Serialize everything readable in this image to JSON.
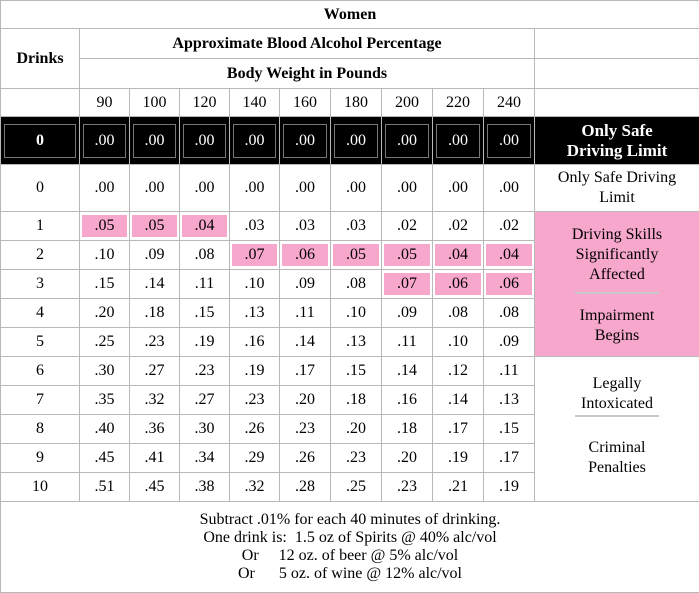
{
  "title": "Women",
  "subtitle": "Approximate Blood Alcohol Percentage",
  "drinks_header": "Drinks",
  "weight_header": "Body Weight in Pounds",
  "weights": [
    "90",
    "100",
    "120",
    "140",
    "160",
    "180",
    "200",
    "220",
    "240"
  ],
  "rows": [
    {
      "drinks": "0",
      "values": [
        ".00",
        ".00",
        ".00",
        ".00",
        ".00",
        ".00",
        ".00",
        ".00",
        ".00"
      ]
    },
    {
      "drinks": "0",
      "values": [
        ".00",
        ".00",
        ".00",
        ".00",
        ".00",
        ".00",
        ".00",
        ".00",
        ".00"
      ]
    },
    {
      "drinks": "1",
      "values": [
        ".05",
        ".05",
        ".04",
        ".03",
        ".03",
        ".03",
        ".02",
        ".02",
        ".02"
      ]
    },
    {
      "drinks": "2",
      "values": [
        ".10",
        ".09",
        ".08",
        ".07",
        ".06",
        ".05",
        ".05",
        ".04",
        ".04"
      ]
    },
    {
      "drinks": "3",
      "values": [
        ".15",
        ".14",
        ".11",
        ".10",
        ".09",
        ".08",
        ".07",
        ".06",
        ".06"
      ]
    },
    {
      "drinks": "4",
      "values": [
        ".20",
        ".18",
        ".15",
        ".13",
        ".11",
        ".10",
        ".09",
        ".08",
        ".08"
      ]
    },
    {
      "drinks": "5",
      "values": [
        ".25",
        ".23",
        ".19",
        ".16",
        ".14",
        ".13",
        ".11",
        ".10",
        ".09"
      ]
    },
    {
      "drinks": "6",
      "values": [
        ".30",
        ".27",
        ".23",
        ".19",
        ".17",
        ".15",
        ".14",
        ".12",
        ".11"
      ]
    },
    {
      "drinks": "7",
      "values": [
        ".35",
        ".32",
        ".27",
        ".23",
        ".20",
        ".18",
        ".16",
        ".14",
        ".13"
      ]
    },
    {
      "drinks": "8",
      "values": [
        ".40",
        ".36",
        ".30",
        ".26",
        ".23",
        ".20",
        ".18",
        ".17",
        ".15"
      ]
    },
    {
      "drinks": "9",
      "values": [
        ".45",
        ".41",
        ".34",
        ".29",
        ".26",
        ".23",
        ".20",
        ".19",
        ".17"
      ]
    },
    {
      "drinks": "10",
      "values": [
        ".51",
        ".45",
        ".38",
        ".32",
        ".28",
        ".25",
        ".23",
        ".21",
        ".19"
      ]
    }
  ],
  "status": {
    "black_label_1": "Only Safe",
    "black_label_2": "Driving Limit",
    "safe_label_1": "Only Safe Driving",
    "safe_label_2": "Limit",
    "skills_1": "Driving Skills",
    "skills_2": "Significantly",
    "skills_3": "Affected",
    "impair_1": "Impairment",
    "impair_2": "Begins",
    "legal_1": "Legally",
    "legal_2": "Intoxicated",
    "criminal_1": "Criminal",
    "criminal_2": "Penalties"
  },
  "notes": [
    "Subtract .01% for each 40 minutes of drinking.",
    "One drink is:  1.5 oz of Spirits @ 40% alc/vol",
    "Or     12 oz. of beer @ 5% alc/vol",
    "Or      5 oz. of wine @ 12% alc/vol"
  ],
  "colors": {
    "highlight_pink": "#f7a6cc",
    "header_black": "#000000",
    "grid": "#b8b8b8"
  }
}
